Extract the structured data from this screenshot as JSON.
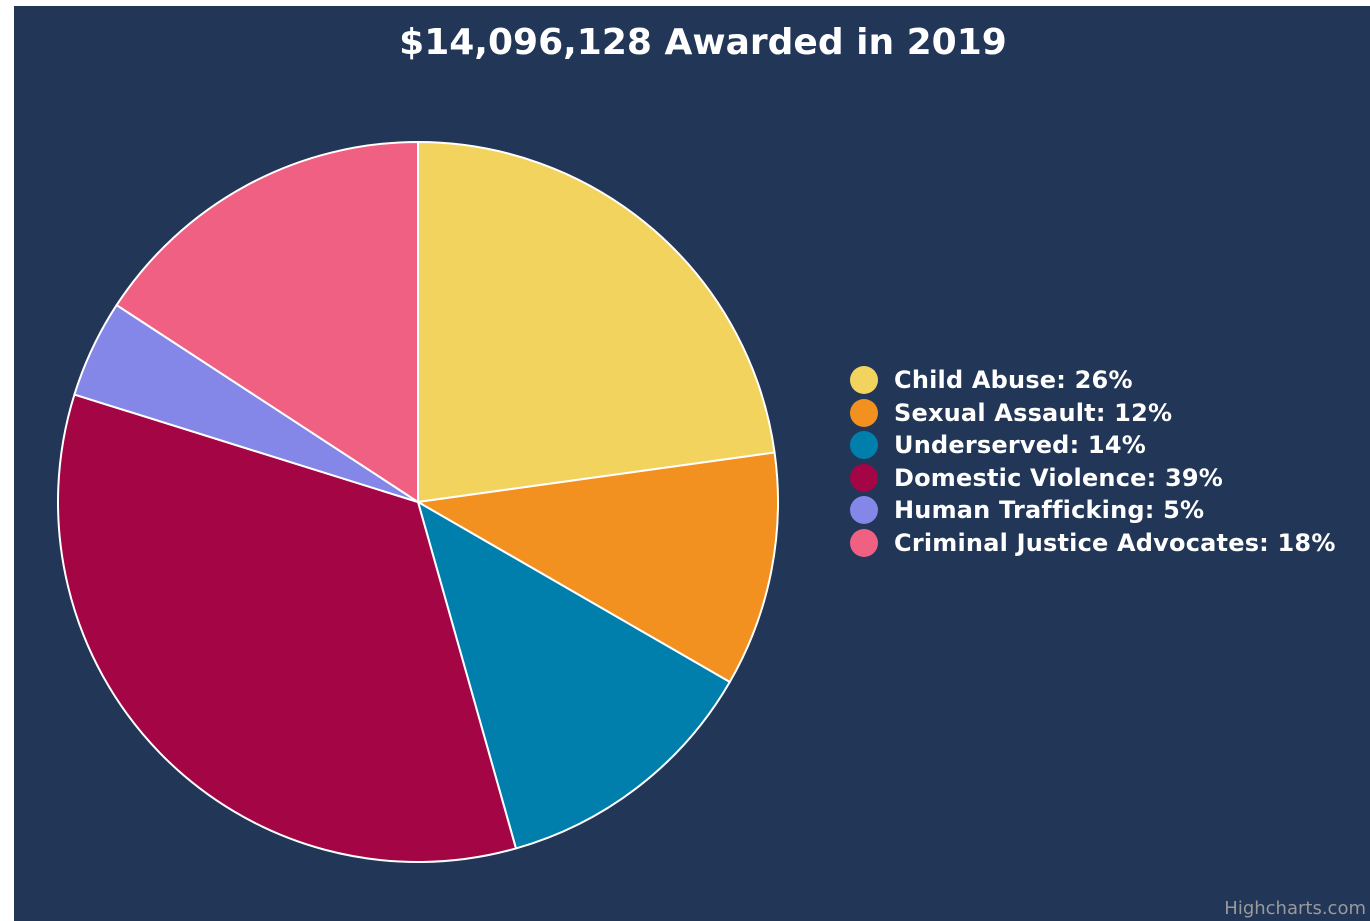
{
  "chart_data": {
    "type": "pie",
    "title": "$14,096,128 Awarded in 2019",
    "series": [
      {
        "data": [
          {
            "name": "Child Abuse",
            "value": 26,
            "color": "#f2d35e",
            "label": "Child Abuse: 26%"
          },
          {
            "name": "Sexual Assault",
            "value": 12,
            "color": "#f39120",
            "label": "Sexual Assault: 12%"
          },
          {
            "name": "Underserved",
            "value": 14,
            "color": "#007fad",
            "label": "Underserved: 14%"
          },
          {
            "name": "Domestic Violence",
            "value": 39,
            "color": "#a30545",
            "label": "Domestic Violence: 39%"
          },
          {
            "name": "Human Trafficking",
            "value": 5,
            "color": "#8486e8",
            "label": "Human Trafficking: 5%"
          },
          {
            "name": "Criminal Justice Advocates",
            "value": 18,
            "color": "#f06083",
            "label": "Criminal Justice Advocates: 18%"
          }
        ]
      }
    ],
    "legend": {
      "position": "right"
    },
    "credits": "Highcharts.com",
    "background": "#223657"
  }
}
